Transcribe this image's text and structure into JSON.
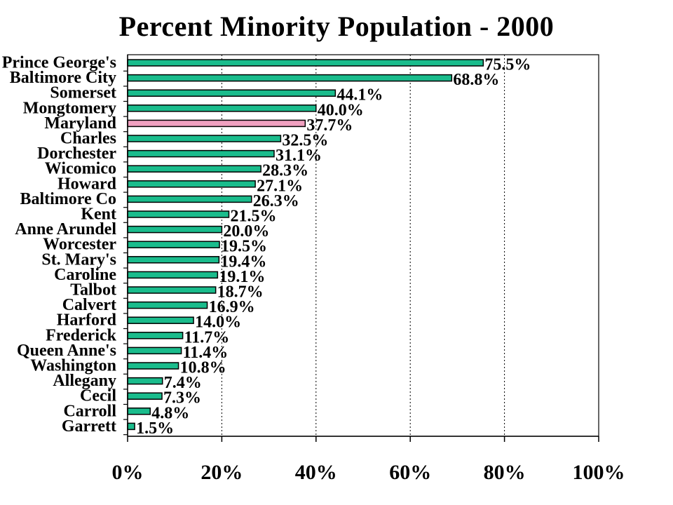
{
  "chart_data": {
    "type": "bar",
    "orientation": "horizontal",
    "title": "Percent Minority Population - 2000",
    "xlabel": "",
    "ylabel": "",
    "xlim": [
      0,
      100
    ],
    "x_ticks": [
      "0%",
      "20%",
      "40%",
      "60%",
      "80%",
      "100%"
    ],
    "grid": "vertical dashed",
    "bar_color": "#1ABC8C",
    "highlight_color": "#F0A0C0",
    "categories": [
      "Prince George's",
      "Baltimore City",
      "Somerset",
      "Mongtomery",
      "Maryland",
      "Charles",
      "Dorchester",
      "Wicomico",
      "Howard",
      "Baltimore Co",
      "Kent",
      "Anne Arundel",
      "Worcester",
      "St. Mary's",
      "Caroline",
      "Talbot",
      "Calvert",
      "Harford",
      "Frederick",
      "Queen Anne's",
      "Washington",
      "Allegany",
      "Cecil",
      "Carroll",
      "Garrett"
    ],
    "values": [
      75.5,
      68.8,
      44.1,
      40.0,
      37.7,
      32.5,
      31.1,
      28.3,
      27.1,
      26.3,
      21.5,
      20.0,
      19.5,
      19.4,
      19.1,
      18.7,
      16.9,
      14.0,
      11.7,
      11.4,
      10.8,
      7.4,
      7.3,
      4.8,
      1.5
    ],
    "value_labels": [
      "75.5%",
      "68.8%",
      "44.1%",
      "40.0%",
      "37.7%",
      "32.5%",
      "31.1%",
      "28.3%",
      "27.1%",
      "26.3%",
      "21.5%",
      "20.0%",
      "19.5%",
      "19.4%",
      "19.1%",
      "18.7%",
      "16.9%",
      "14.0%",
      "11.7%",
      "11.4%",
      "10.8%",
      "7.4%",
      "7.3%",
      "4.8%",
      "1.5%"
    ],
    "highlighted_category": "Maryland"
  }
}
